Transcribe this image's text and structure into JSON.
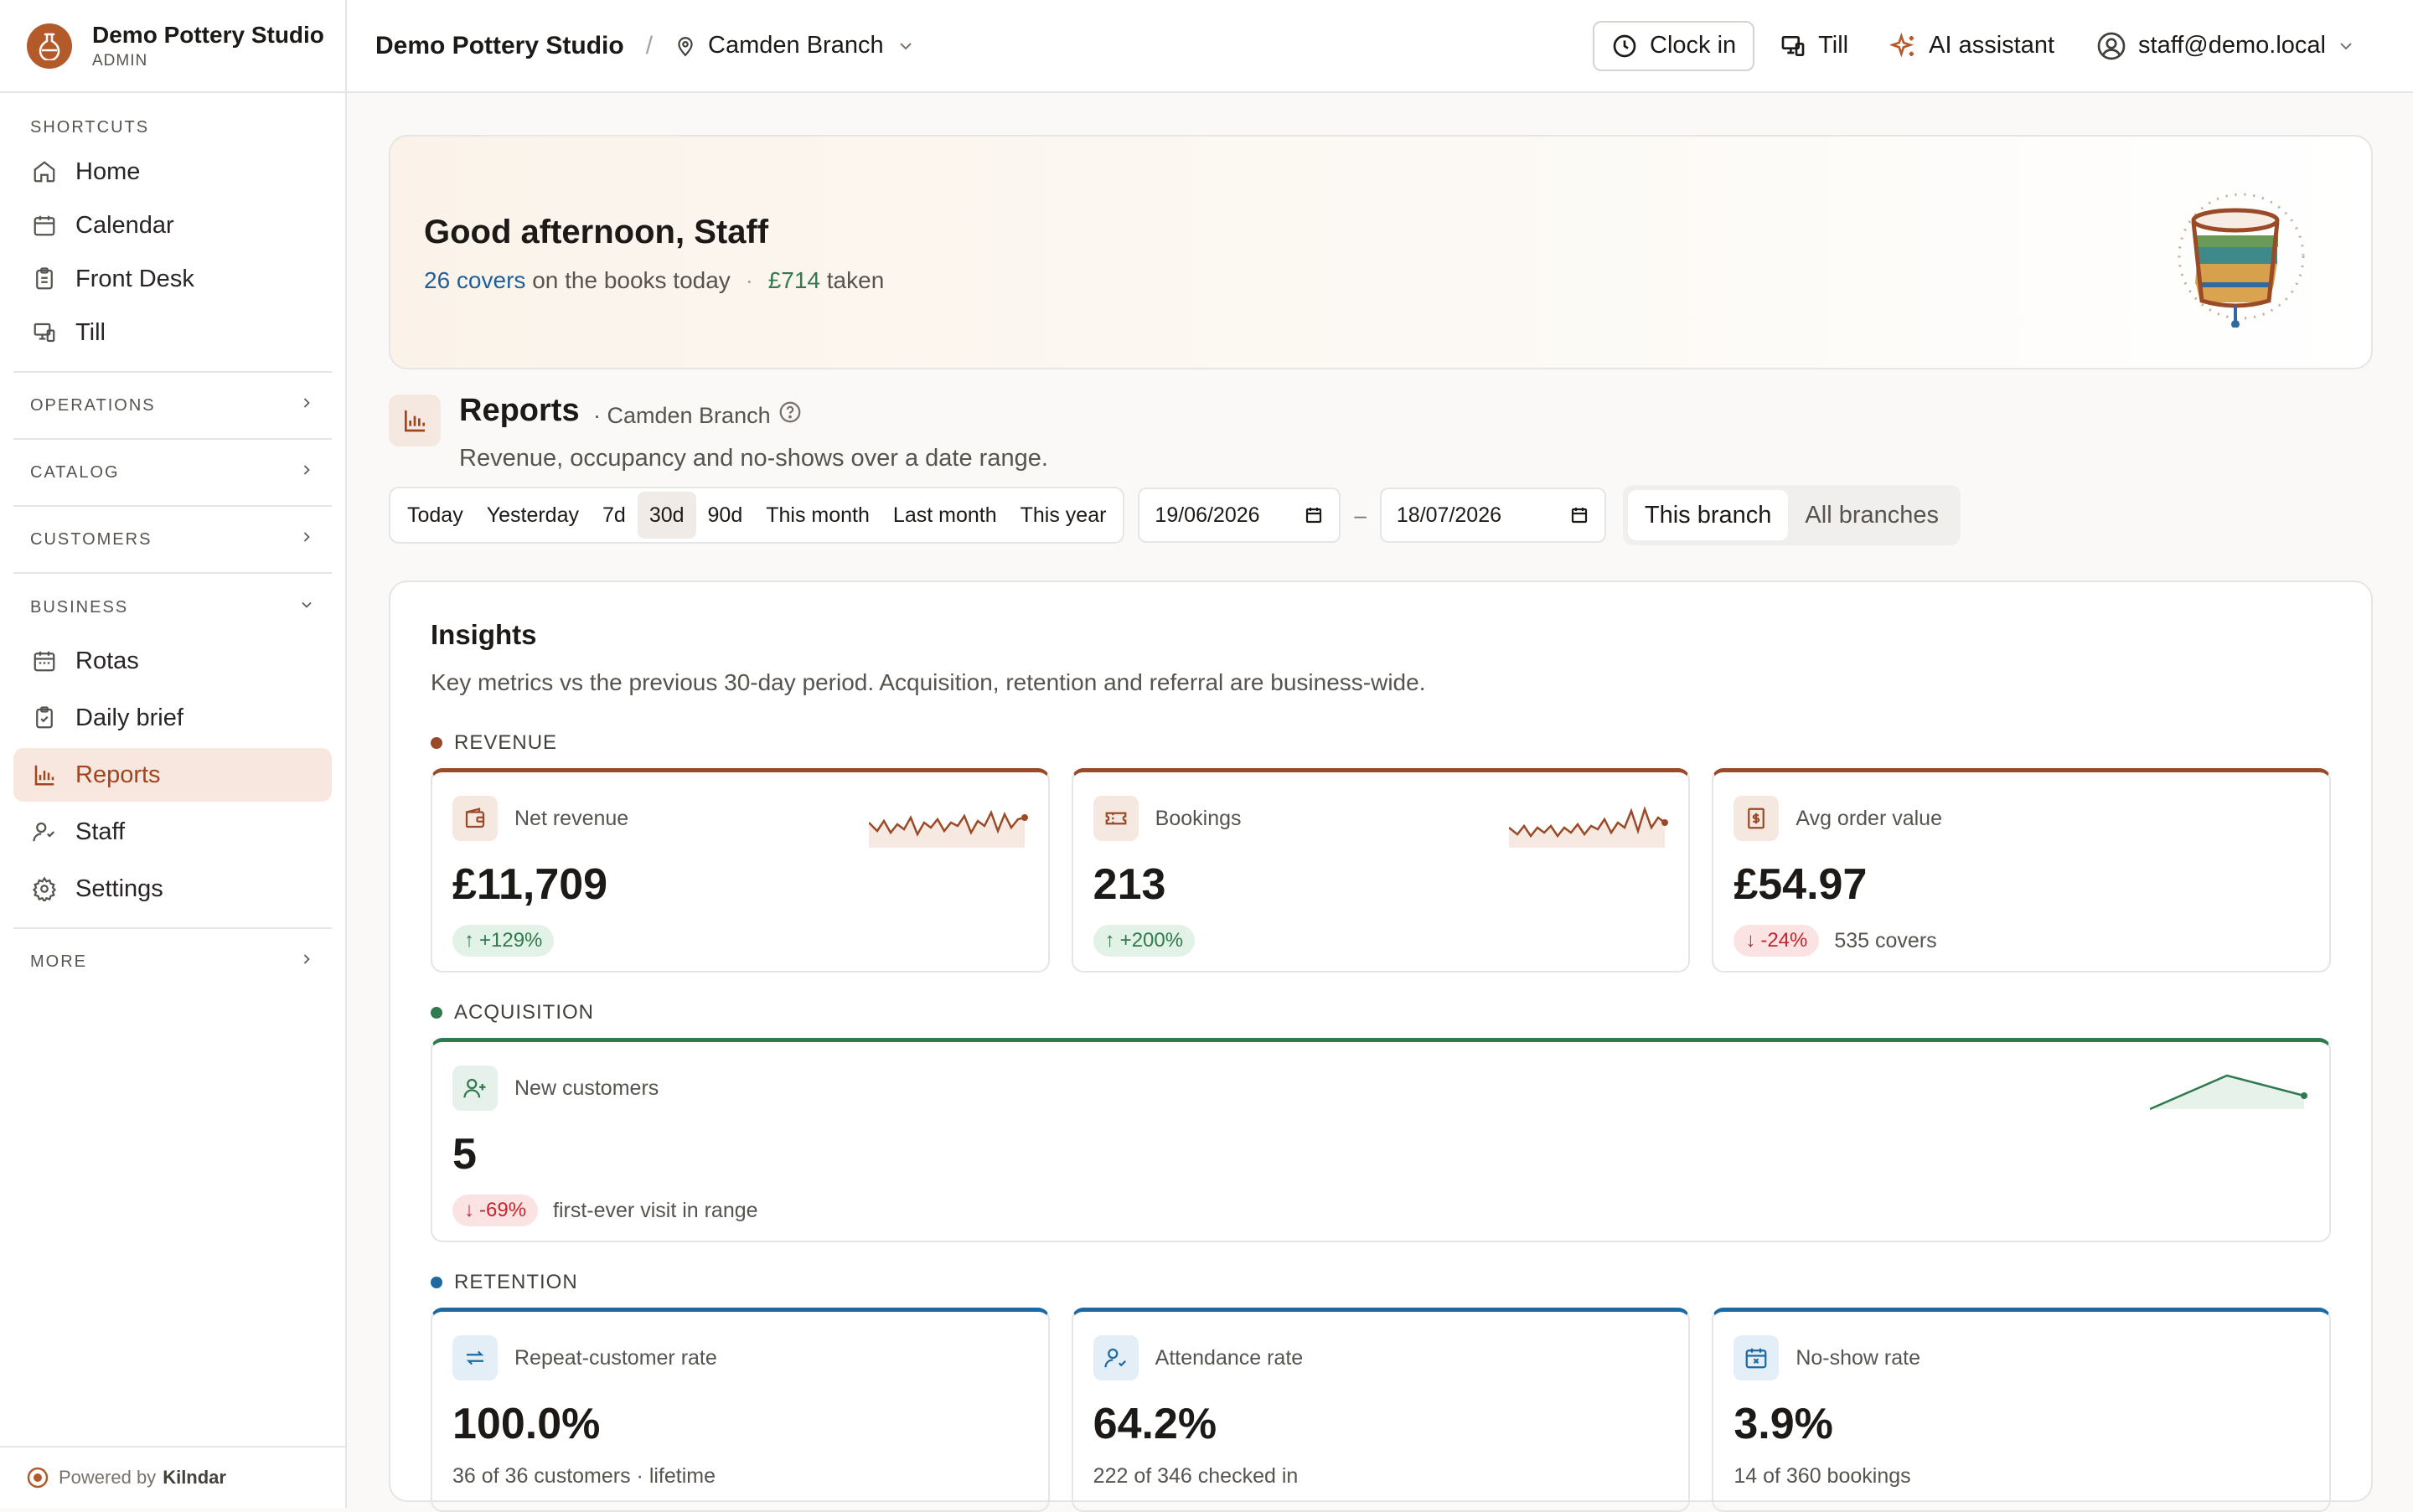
{
  "sidebar": {
    "brand_name": "Demo Pottery Studio",
    "brand_role": "ADMIN",
    "shortcuts_label": "SHORTCUTS",
    "shortcuts": [
      {
        "label": "Home",
        "icon": "home-icon"
      },
      {
        "label": "Calendar",
        "icon": "calendar-icon"
      },
      {
        "label": "Front Desk",
        "icon": "clipboard-icon"
      },
      {
        "label": "Till",
        "icon": "till-icon"
      }
    ],
    "operations_label": "OPERATIONS",
    "catalog_label": "CATALOG",
    "customers_label": "CUSTOMERS",
    "business_label": "BUSINESS",
    "business": [
      {
        "label": "Rotas",
        "icon": "calendar-icon"
      },
      {
        "label": "Daily brief",
        "icon": "clipboard-check-icon"
      },
      {
        "label": "Reports",
        "icon": "bar-chart-icon",
        "active": true
      },
      {
        "label": "Staff",
        "icon": "users-icon"
      },
      {
        "label": "Settings",
        "icon": "gear-icon"
      }
    ],
    "more_label": "MORE",
    "powered_prefix": "Powered by",
    "powered_brand": "Kilndar"
  },
  "topbar": {
    "studio": "Demo Pottery Studio",
    "separator": "/",
    "branch": "Camden Branch",
    "clock_in": "Clock in",
    "till": "Till",
    "ai": "AI assistant",
    "user": "staff@demo.local"
  },
  "hero": {
    "greeting": "Good afternoon, Staff",
    "covers": "26 covers",
    "covers_suffix": "on the books today",
    "dot": "·",
    "taken_amount": "£714",
    "taken_suffix": "taken"
  },
  "reports": {
    "title": "Reports",
    "branch": "· Camden Branch",
    "description": "Revenue, occupancy and no-shows over a date range.",
    "ranges": [
      "Today",
      "Yesterday",
      "7d",
      "30d",
      "90d",
      "This month",
      "Last month",
      "This year"
    ],
    "selected_range": "30d",
    "date_from": "19/06/2026",
    "date_to": "18/07/2026",
    "date_dash": "–",
    "scope_options": [
      "This branch",
      "All branches"
    ],
    "selected_scope": "This branch"
  },
  "insights": {
    "title": "Insights",
    "description": "Key metrics vs the previous 30-day period. Acquisition, retention and referral are business-wide.",
    "groups": {
      "revenue": {
        "label": "REVENUE",
        "color": "#9a4a26",
        "cards": [
          {
            "label": "Net revenue",
            "value": "£11,709",
            "delta": "+129%",
            "direction": "up",
            "note": "",
            "icon": "wallet-icon"
          },
          {
            "label": "Bookings",
            "value": "213",
            "delta": "+200%",
            "direction": "up",
            "note": "",
            "icon": "ticket-icon"
          },
          {
            "label": "Avg order value",
            "value": "£54.97",
            "delta": "-24%",
            "direction": "down",
            "note": "535 covers",
            "icon": "receipt-icon"
          }
        ]
      },
      "acquisition": {
        "label": "ACQUISITION",
        "color": "#2f7a4f",
        "cards": [
          {
            "label": "New customers",
            "value": "5",
            "delta": "-69%",
            "direction": "down",
            "note": "first-ever visit in range",
            "icon": "user-plus-icon"
          }
        ]
      },
      "retention": {
        "label": "RETENTION",
        "color": "#1e6aa0",
        "cards": [
          {
            "label": "Repeat-customer rate",
            "value": "100.0%",
            "note": "36 of 36 customers · lifetime",
            "icon": "repeat-icon"
          },
          {
            "label": "Attendance rate",
            "value": "64.2%",
            "note": "222 of 346 checked in",
            "icon": "user-check-icon"
          },
          {
            "label": "No-show rate",
            "value": "3.9%",
            "note": "14 of 360 bookings",
            "icon": "calendar-x-icon"
          }
        ]
      }
    }
  }
}
